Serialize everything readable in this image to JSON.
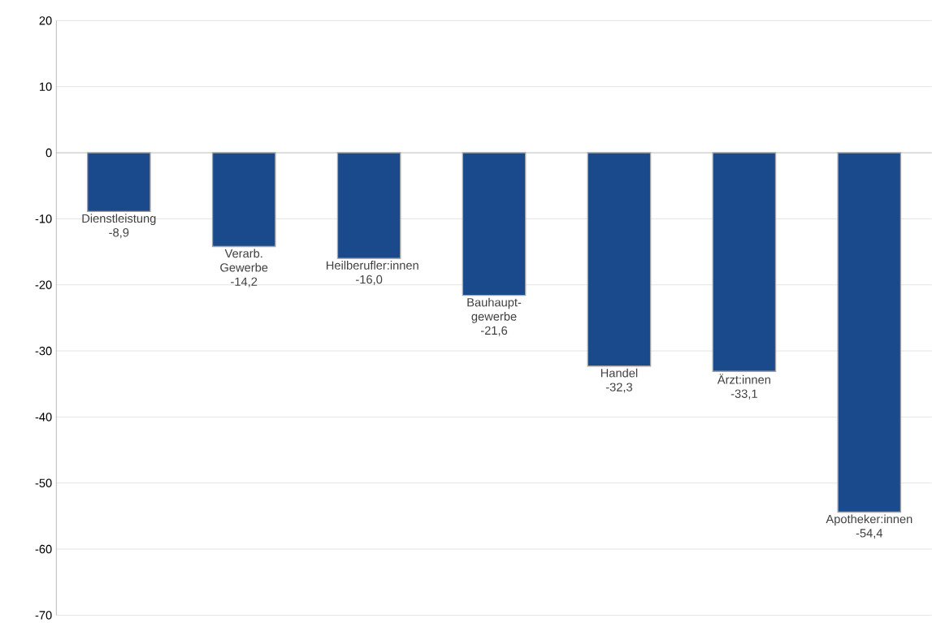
{
  "chart_data": {
    "type": "bar",
    "categories": [
      "Dienstleistung",
      "Verarb. Gewerbe",
      "Heilberufler:innen",
      "Bauhaupt-gewerbe",
      "Handel",
      "Ärzt:innen",
      "Apotheker:innen"
    ],
    "values": [
      -8.9,
      -14.2,
      -16.0,
      -21.6,
      -32.3,
      -33.1,
      -54.4
    ],
    "value_labels": [
      "-8,9",
      "-14,2",
      "-16,0",
      "-21,6",
      "-32,3",
      "-33,1",
      "-54,4"
    ],
    "color": "#1b4a8c",
    "ylim": [
      -70,
      20
    ],
    "yticks": [
      -70,
      -60,
      -50,
      -40,
      -30,
      -20,
      -10,
      0,
      10,
      20
    ],
    "grid": "y",
    "tick_labels": "y"
  }
}
